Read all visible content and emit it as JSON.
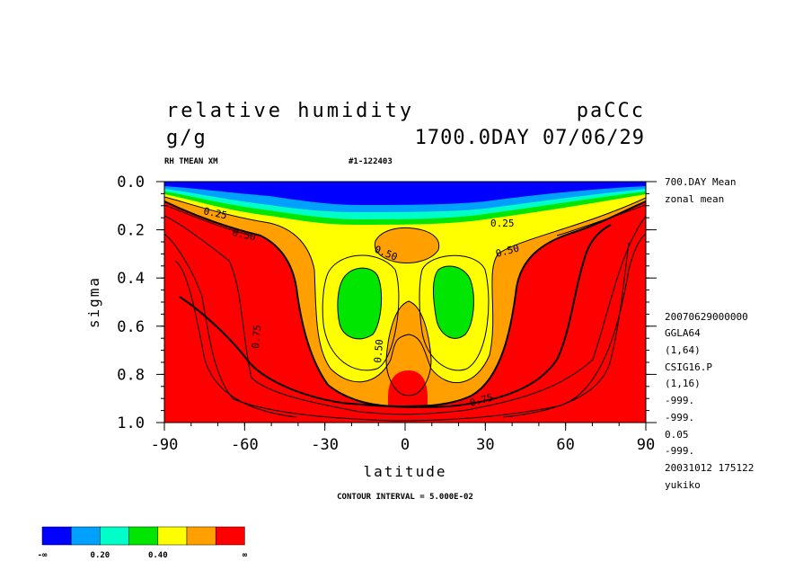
{
  "header": {
    "title": "relative humidity",
    "run_id": "paCCc",
    "units": "g/g",
    "time": "1700.0DAY 07/06/29",
    "subtitle_left": "RH TMEAN XM",
    "subtitle_right": "#1-122403"
  },
  "side_info": {
    "top": [
      "700.DAY Mean",
      "zonal mean"
    ],
    "bottom": [
      "20070629000000",
      "GGLA64",
      "(1,64)",
      "CSIG16.P",
      "(1,16)",
      "-999.",
      "-999.",
      "0.05",
      "-999.",
      "20031012 175122",
      "yukiko"
    ]
  },
  "footer": {
    "contour_interval": "CONTOUR INTERVAL = 5.000E-02"
  },
  "colorbar": {
    "colors": [
      "#0000ff",
      "#00a0ff",
      "#00ffc8",
      "#00e600",
      "#ffff00",
      "#ffa000",
      "#ff0000"
    ],
    "labels": [
      "-∞",
      "0.20",
      "0.40",
      "∞"
    ]
  },
  "chart_data": {
    "type": "heatmap",
    "title": "relative humidity",
    "xlabel": "latitude",
    "ylabel": "sigma",
    "xlim": [
      -90,
      90
    ],
    "ylim": [
      1.0,
      0.0
    ],
    "x_ticks": [
      "-90",
      "-60",
      "-30",
      "0",
      "30",
      "60",
      "90"
    ],
    "y_ticks": [
      "0.0",
      "0.2",
      "0.4",
      "0.6",
      "0.8",
      "1.0"
    ],
    "x_tick_values": [
      -90,
      -60,
      -30,
      0,
      30,
      60,
      90
    ],
    "y_tick_values": [
      0.0,
      0.2,
      0.4,
      0.6,
      0.8,
      1.0
    ],
    "levels": [
      0.1,
      0.2,
      0.3,
      0.4,
      0.5,
      0.6,
      1.0
    ],
    "contour_labels": [
      {
        "text": "0.25",
        "x": -70,
        "y": 0.11
      },
      {
        "text": "0.50",
        "x": -60,
        "y": 0.22
      },
      {
        "text": "0.50",
        "x": -5,
        "y": 0.31
      },
      {
        "text": "0.25",
        "x": 35,
        "y": 0.17
      },
      {
        "text": "0.50",
        "x": 40,
        "y": 0.28
      },
      {
        "text": "0.75",
        "x": -55,
        "y": 0.62
      },
      {
        "text": "0.50",
        "x": -10,
        "y": 0.68
      },
      {
        "text": "0.75",
        "x": 30,
        "y": 0.88
      }
    ],
    "regions": [
      {
        "name": "red",
        "value": 0.8
      },
      {
        "name": "orange",
        "value": 0.55
      },
      {
        "name": "yellow",
        "value": 0.45
      },
      {
        "name": "green",
        "value": 0.35
      },
      {
        "name": "teal",
        "value": 0.25
      },
      {
        "name": "light-blue",
        "value": 0.15
      },
      {
        "name": "blue",
        "value": 0.05
      }
    ],
    "grid": false,
    "legend": "bottom-left"
  }
}
